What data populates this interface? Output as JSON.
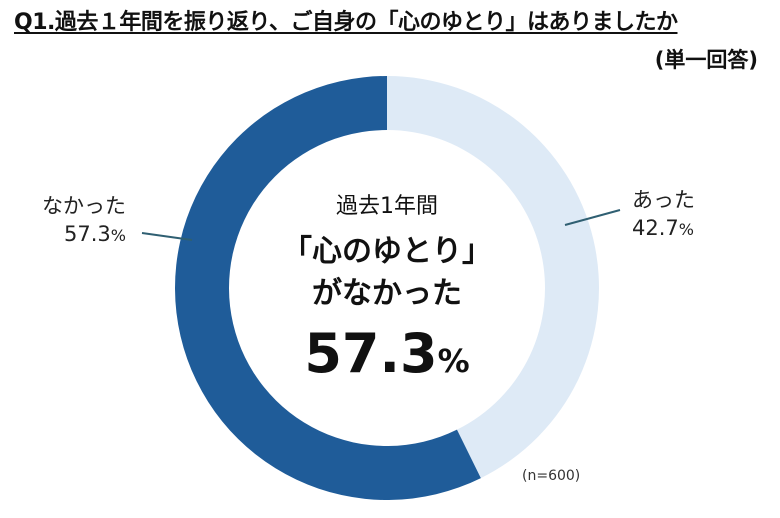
{
  "title": "Q1.過去１年間を振り返り、ご自身の「心のゆとり」はありましたか",
  "subtitle": "(単一回答)",
  "center_text": {
    "line1": "過去1年間",
    "line2": "「心のゆとり」",
    "line3": "がなかった",
    "value": "57.3",
    "unit": "%"
  },
  "sample_size": "(n=600)",
  "chart_data": {
    "type": "pie",
    "variant": "donut",
    "start": "top, clockwise",
    "slices": [
      {
        "label": "あった",
        "value": 42.7,
        "value_text": "42.7",
        "unit": "%",
        "color": "#deeaf6"
      },
      {
        "label": "なかった",
        "value": 57.3,
        "value_text": "57.3",
        "unit": "%",
        "color": "#1f5c99"
      }
    ],
    "leader_line_color": "#2f5f72"
  }
}
